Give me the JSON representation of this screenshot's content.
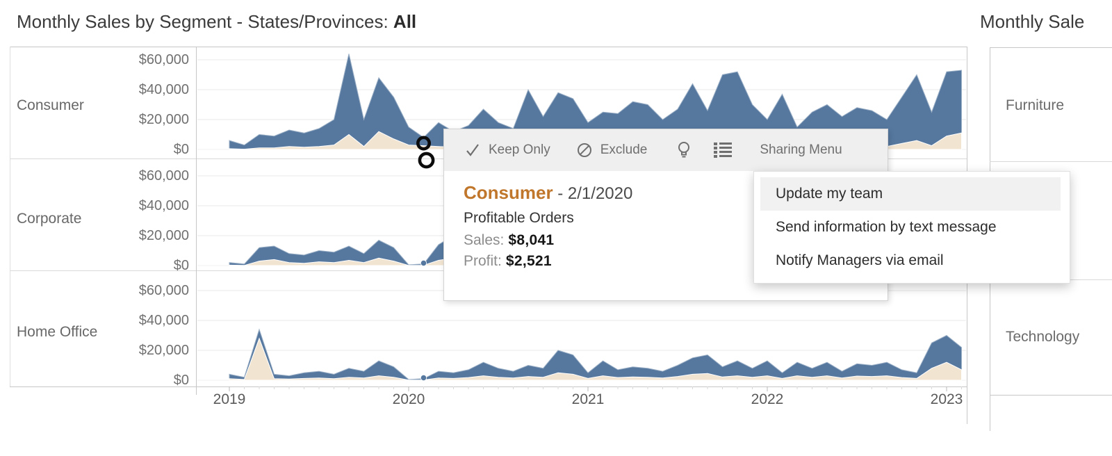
{
  "left_chart": {
    "title_prefix": "Monthly Sales by Segment - States/Provinces: ",
    "title_value": "All",
    "segments": [
      "Consumer",
      "Corporate",
      "Home Office"
    ],
    "y_ticks": [
      "$60,000",
      "$40,000",
      "$20,000",
      "$0"
    ],
    "x_ticks": [
      "2019",
      "2020",
      "2021",
      "2022",
      "2023"
    ]
  },
  "right_chart": {
    "title": "Monthly Sale",
    "rows": [
      "Furniture",
      "Technology"
    ]
  },
  "tooltip": {
    "toolbar": {
      "keep_only": "Keep Only",
      "exclude": "Exclude",
      "sharing_menu": "Sharing Menu"
    },
    "segment": "Consumer",
    "separator": " - ",
    "date": "2/1/2020",
    "subtitle": "Profitable Orders",
    "sales_label": "Sales:",
    "sales_value": "$8,041",
    "profit_label": "Profit:",
    "profit_value": "$2,521"
  },
  "context_menu": {
    "items": [
      "Update my team",
      "Send information by text message",
      "Notify Managers via email"
    ]
  },
  "colors": {
    "sales_area": "#56789f",
    "profit_area": "#f1e4d1",
    "accent_orange": "#c0772c"
  },
  "chart_data": {
    "type": "area",
    "title": "Monthly Sales by Segment - States/Provinces: All",
    "x_axis_years": [
      "2019",
      "2020",
      "2021",
      "2022",
      "2023"
    ],
    "y_tick_values": [
      0,
      20000,
      40000,
      60000
    ],
    "ylim": [
      0,
      70000
    ],
    "grid": true,
    "legend_position": "none",
    "months": [
      "2019-01",
      "2019-02",
      "2019-03",
      "2019-04",
      "2019-05",
      "2019-06",
      "2019-07",
      "2019-08",
      "2019-09",
      "2019-10",
      "2019-11",
      "2019-12",
      "2020-01",
      "2020-02",
      "2020-03",
      "2020-04",
      "2020-05",
      "2020-06",
      "2020-07",
      "2020-08",
      "2020-09",
      "2020-10",
      "2020-11",
      "2020-12",
      "2021-01",
      "2021-02",
      "2021-03",
      "2021-04",
      "2021-05",
      "2021-06",
      "2021-07",
      "2021-08",
      "2021-09",
      "2021-10",
      "2021-11",
      "2021-12",
      "2022-01",
      "2022-02",
      "2022-03",
      "2022-04",
      "2022-05",
      "2022-06",
      "2022-07",
      "2022-08",
      "2022-09",
      "2022-10",
      "2022-11",
      "2022-12",
      "2023-01",
      "2023-02"
    ],
    "selected_point": {
      "segment": "Consumer",
      "month": "2020-02",
      "sales": 8041,
      "profit": 2521
    },
    "series": [
      {
        "name": "Consumer",
        "sales": [
          6000,
          3000,
          10000,
          9000,
          13000,
          11000,
          14000,
          20000,
          64000,
          20000,
          48000,
          35000,
          15000,
          8041,
          18000,
          12000,
          16000,
          27000,
          18000,
          14000,
          40000,
          22000,
          38000,
          34000,
          18000,
          25000,
          24000,
          32000,
          30000,
          20000,
          27000,
          44000,
          26000,
          50000,
          52000,
          30000,
          20000,
          37000,
          15000,
          25000,
          30000,
          22000,
          28000,
          26000,
          20000,
          35000,
          50000,
          25000,
          52000,
          53000
        ],
        "profit": [
          500,
          200,
          1000,
          1000,
          2000,
          1500,
          2000,
          3000,
          10000,
          2000,
          12000,
          7000,
          3000,
          2521,
          2000,
          1500,
          2000,
          3000,
          2000,
          1500,
          5000,
          2500,
          4000,
          3500,
          2000,
          3000,
          2500,
          3500,
          3000,
          2000,
          3000,
          5000,
          2500,
          6000,
          6000,
          3000,
          2000,
          4000,
          1500,
          2500,
          3000,
          2000,
          3000,
          2500,
          2000,
          4000,
          6000,
          2500,
          9000,
          11000
        ]
      },
      {
        "name": "Corporate",
        "sales": [
          2000,
          1000,
          12000,
          13000,
          8000,
          7000,
          10000,
          9000,
          13000,
          8000,
          17000,
          12000,
          500,
          1000,
          14000,
          20000,
          10000,
          8000,
          12000,
          9000,
          7000,
          15000,
          18000,
          16000,
          8000,
          12000,
          10000,
          14000,
          18000,
          9000,
          11000,
          16000,
          12000,
          20000,
          22000,
          14000,
          10000,
          15000,
          8000,
          12000,
          14000,
          10000,
          13000,
          11000,
          9000,
          10000,
          15000,
          8000,
          14000,
          20000
        ],
        "profit": [
          300,
          100,
          3000,
          4000,
          2000,
          1500,
          2500,
          2000,
          3500,
          2000,
          5000,
          3000,
          100,
          200,
          3500,
          5000,
          2500,
          2000,
          3000,
          2000,
          1500,
          4000,
          5000,
          4000,
          2000,
          3000,
          2500,
          3500,
          4500,
          2000,
          2500,
          4000,
          3000,
          5000,
          6000,
          3500,
          2500,
          4000,
          2000,
          3000,
          3500,
          2500,
          3000,
          2500,
          2000,
          5000,
          7000,
          4000,
          6000,
          5000
        ]
      },
      {
        "name": "Home Office",
        "sales": [
          4000,
          2000,
          34000,
          4000,
          3000,
          5000,
          6000,
          4000,
          8000,
          6000,
          13000,
          9000,
          500,
          1000,
          6000,
          5000,
          7000,
          12000,
          8000,
          6000,
          10000,
          8000,
          20000,
          17000,
          5000,
          13000,
          7000,
          9000,
          8000,
          6000,
          10000,
          15000,
          17000,
          9000,
          13000,
          8000,
          13000,
          5000,
          12000,
          8000,
          12000,
          6000,
          11000,
          10000,
          12000,
          7000,
          5000,
          25000,
          30000,
          22000
        ],
        "profit": [
          1000,
          500,
          28000,
          1000,
          800,
          1200,
          1500,
          1000,
          2000,
          1500,
          3000,
          2000,
          100,
          200,
          1500,
          1200,
          1800,
          3000,
          2000,
          1500,
          2500,
          2000,
          5000,
          4000,
          1200,
          3000,
          1800,
          2200,
          2000,
          1500,
          2500,
          4000,
          4500,
          2200,
          3000,
          2000,
          3000,
          1200,
          3000,
          2000,
          3000,
          1500,
          2800,
          2500,
          3000,
          1800,
          1200,
          8000,
          12000,
          7000
        ]
      }
    ]
  }
}
